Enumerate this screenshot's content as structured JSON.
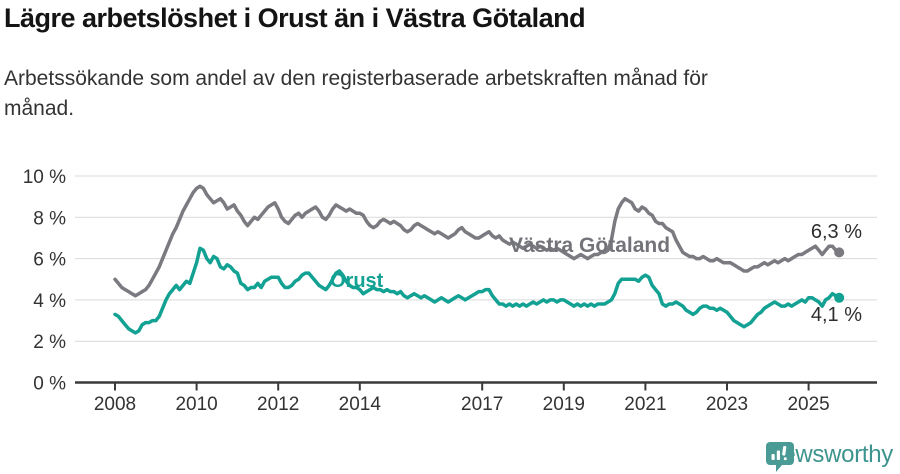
{
  "header": {
    "title": "Lägre arbetslöshet i Orust än i Västra Götaland",
    "subtitle_line1": "Arbetssökande som andel av den registerbaserade arbetskraften månad för",
    "subtitle_line2": "månad."
  },
  "chart_data": {
    "type": "line",
    "unit": "%",
    "x_start": {
      "year": 2008,
      "month": 1
    },
    "x_end": {
      "year": 2025,
      "month": 10
    },
    "x_frequency": "monthly",
    "x_tick_years": [
      2008,
      2010,
      2012,
      2014,
      2017,
      2019,
      2021,
      2023,
      2025
    ],
    "y_ticks": [
      0,
      2,
      4,
      6,
      8,
      10
    ],
    "y_tick_suffix": " %",
    "ylim": [
      0,
      10
    ],
    "grid": true,
    "legend_position": "inline-labels",
    "style": {
      "grid_color": "#d9d9d9",
      "axis_color": "#3a3a3a",
      "tick_label_color": "#333333"
    },
    "series": [
      {
        "name": "Västra Götaland",
        "color": "#7a7a80",
        "end_label": "6,3 %",
        "end_value": 6.3,
        "values": [
          5.0,
          4.8,
          4.6,
          4.5,
          4.4,
          4.3,
          4.2,
          4.3,
          4.4,
          4.5,
          4.7,
          5.0,
          5.3,
          5.6,
          6.0,
          6.4,
          6.8,
          7.2,
          7.5,
          7.9,
          8.3,
          8.6,
          8.9,
          9.2,
          9.4,
          9.5,
          9.4,
          9.1,
          8.9,
          8.7,
          8.8,
          8.9,
          8.7,
          8.4,
          8.5,
          8.6,
          8.3,
          8.1,
          7.8,
          7.6,
          7.8,
          8.0,
          7.9,
          8.1,
          8.3,
          8.5,
          8.6,
          8.7,
          8.4,
          8.0,
          7.8,
          7.7,
          7.9,
          8.1,
          8.2,
          8.0,
          8.2,
          8.3,
          8.4,
          8.5,
          8.3,
          8.0,
          7.9,
          8.1,
          8.4,
          8.6,
          8.5,
          8.4,
          8.3,
          8.4,
          8.3,
          8.2,
          8.2,
          8.1,
          7.8,
          7.6,
          7.5,
          7.6,
          7.8,
          7.9,
          7.8,
          7.7,
          7.8,
          7.7,
          7.6,
          7.4,
          7.3,
          7.4,
          7.6,
          7.7,
          7.6,
          7.5,
          7.4,
          7.3,
          7.2,
          7.3,
          7.2,
          7.1,
          7.0,
          7.1,
          7.2,
          7.4,
          7.5,
          7.3,
          7.2,
          7.1,
          7.0,
          7.0,
          7.1,
          7.2,
          7.3,
          7.1,
          7.0,
          7.1,
          6.9,
          6.8,
          6.7,
          6.8,
          6.7,
          6.6,
          6.5,
          6.6,
          6.7,
          6.6,
          6.5,
          6.6,
          6.5,
          6.4,
          6.5,
          6.4,
          6.5,
          6.4,
          6.3,
          6.2,
          6.1,
          6.0,
          6.1,
          6.2,
          6.1,
          6.0,
          6.1,
          6.2,
          6.2,
          6.3,
          6.3,
          6.4,
          6.9,
          7.8,
          8.4,
          8.7,
          8.9,
          8.8,
          8.7,
          8.4,
          8.3,
          8.5,
          8.4,
          8.2,
          8.1,
          7.8,
          7.7,
          7.7,
          7.5,
          7.4,
          7.3,
          6.9,
          6.6,
          6.3,
          6.2,
          6.1,
          6.1,
          6.0,
          6.0,
          6.1,
          6.0,
          5.9,
          5.9,
          6.0,
          5.9,
          5.8,
          5.8,
          5.8,
          5.7,
          5.6,
          5.5,
          5.4,
          5.4,
          5.5,
          5.6,
          5.6,
          5.7,
          5.8,
          5.7,
          5.8,
          5.9,
          5.8,
          5.9,
          6.0,
          5.9,
          6.0,
          6.1,
          6.2,
          6.2,
          6.3,
          6.4,
          6.5,
          6.6,
          6.4,
          6.2,
          6.4,
          6.6,
          6.6,
          6.4,
          6.3
        ]
      },
      {
        "name": "Orust",
        "color": "#12a192",
        "end_label": "4,1 %",
        "end_value": 4.1,
        "values": [
          3.3,
          3.2,
          3.0,
          2.8,
          2.6,
          2.5,
          2.4,
          2.5,
          2.8,
          2.9,
          2.9,
          3.0,
          3.0,
          3.2,
          3.6,
          4.0,
          4.3,
          4.5,
          4.7,
          4.5,
          4.7,
          4.9,
          4.8,
          5.3,
          5.8,
          6.5,
          6.4,
          6.0,
          5.8,
          6.1,
          6.0,
          5.6,
          5.5,
          5.7,
          5.6,
          5.4,
          5.3,
          4.8,
          4.7,
          4.5,
          4.6,
          4.6,
          4.8,
          4.6,
          4.9,
          5.0,
          5.1,
          5.1,
          5.1,
          4.8,
          4.6,
          4.6,
          4.7,
          4.9,
          5.0,
          5.2,
          5.3,
          5.3,
          5.1,
          4.9,
          4.7,
          4.6,
          4.5,
          4.7,
          5.0,
          5.3,
          5.4,
          5.2,
          4.9,
          4.7,
          4.6,
          4.6,
          4.5,
          4.3,
          4.4,
          4.5,
          4.6,
          4.5,
          4.5,
          4.4,
          4.5,
          4.4,
          4.4,
          4.3,
          4.4,
          4.2,
          4.1,
          4.2,
          4.3,
          4.2,
          4.1,
          4.2,
          4.1,
          4.0,
          3.9,
          4.0,
          4.1,
          4.0,
          3.9,
          4.0,
          4.1,
          4.2,
          4.1,
          4.0,
          4.1,
          4.2,
          4.3,
          4.4,
          4.4,
          4.5,
          4.5,
          4.2,
          4.0,
          3.8,
          3.8,
          3.7,
          3.8,
          3.7,
          3.8,
          3.7,
          3.8,
          3.7,
          3.8,
          3.9,
          3.8,
          3.9,
          4.0,
          3.9,
          4.0,
          4.0,
          3.9,
          4.0,
          4.0,
          3.9,
          3.8,
          3.7,
          3.8,
          3.7,
          3.8,
          3.7,
          3.8,
          3.7,
          3.8,
          3.8,
          3.8,
          3.9,
          4.0,
          4.3,
          4.8,
          5.0,
          5.0,
          5.0,
          5.0,
          5.0,
          4.9,
          5.1,
          5.2,
          5.1,
          4.7,
          4.5,
          4.3,
          3.8,
          3.7,
          3.8,
          3.8,
          3.9,
          3.8,
          3.7,
          3.5,
          3.4,
          3.3,
          3.4,
          3.6,
          3.7,
          3.7,
          3.6,
          3.6,
          3.5,
          3.6,
          3.5,
          3.4,
          3.2,
          3.0,
          2.9,
          2.8,
          2.7,
          2.8,
          2.9,
          3.1,
          3.3,
          3.4,
          3.6,
          3.7,
          3.8,
          3.9,
          3.8,
          3.7,
          3.7,
          3.8,
          3.7,
          3.8,
          3.9,
          4.0,
          3.9,
          4.1,
          4.1,
          4.0,
          3.9,
          3.7,
          4.0,
          4.1,
          4.3,
          4.2,
          4.1
        ]
      }
    ]
  },
  "footer": {
    "brand": "Newsworthy",
    "brand_color": "#4a9b96"
  }
}
